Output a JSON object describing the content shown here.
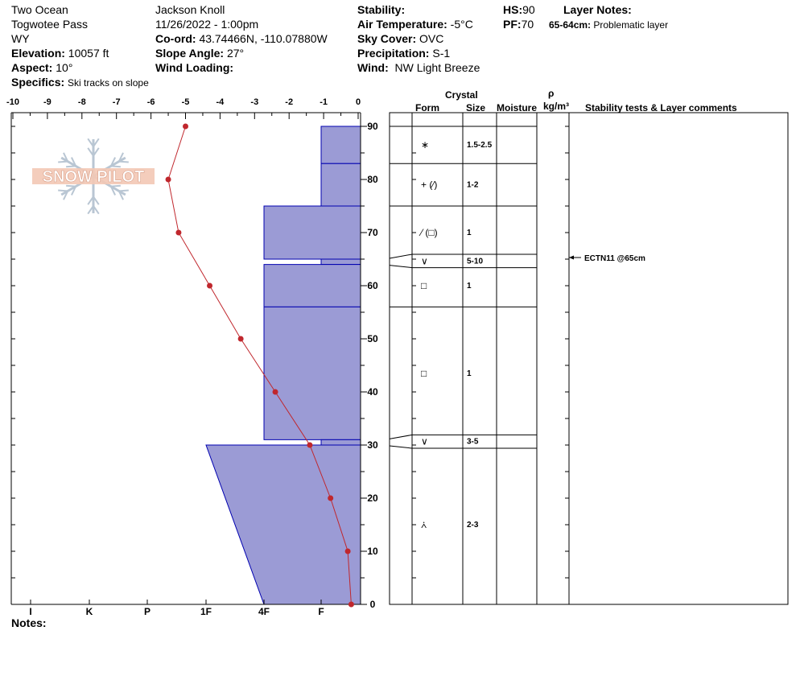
{
  "header": {
    "col1": [
      "Two Ocean",
      "Togwotee Pass",
      "WY"
    ],
    "elevation_label": "Elevation:",
    "elevation_value": "10057 ft",
    "aspect_label": "Aspect:",
    "aspect_value": "10°",
    "specifics_label": "Specifics:",
    "specifics_value": "Ski tracks on slope",
    "col2_1": "Jackson Knoll",
    "col2_2": "11/26/2022 - 1:00pm",
    "coord_label": "Co-ord:",
    "coord_value": "43.74466N, -110.07880W",
    "slope_label": "Slope Angle:",
    "slope_value": "27°",
    "wind_loading_label": "Wind Loading:",
    "stability_label": "Stability:",
    "airtemp_label": "Air Temperature:",
    "airtemp_value": "-5°C",
    "sky_label": "Sky Cover:",
    "sky_value": "OVC",
    "precip_label": "Precipitation:",
    "precip_value": "S-1",
    "wind_label": "Wind:",
    "wind_value": "NW Light Breeze",
    "hs_label": "HS:",
    "hs_value": "90",
    "pf_label": "PF:",
    "pf_value": "70",
    "layer_notes_label": "Layer Notes:",
    "layer_note_range": "65-64cm:",
    "layer_note_text": "Problematic layer"
  },
  "notes_label": "Notes:",
  "logo_text": "SNOW PILOT",
  "table_headers": {
    "crystal": "Crystal",
    "form": "Form",
    "size": "Size",
    "moisture": "Moisture",
    "rho": "ρ",
    "density_unit": "kg/m³",
    "stability": "Stability tests & Layer comments"
  },
  "chart_data": {
    "type": "line",
    "title": "",
    "temperature_axis": {
      "ticks": [
        "-10",
        "-9",
        "-8",
        "-7",
        "-6",
        "-5",
        "-4",
        "-3",
        "-2",
        "-1",
        "0"
      ],
      "range": [
        -10,
        0
      ]
    },
    "height_axis": {
      "ticks": [
        "0",
        "10",
        "20",
        "30",
        "40",
        "50",
        "60",
        "70",
        "80",
        "90"
      ],
      "range": [
        0,
        90
      ]
    },
    "hardness_ticks": [
      "I",
      "K",
      "P",
      "1F",
      "4F",
      "F"
    ],
    "temperature_profile": {
      "heights": [
        90,
        80,
        70,
        60,
        50,
        40,
        30,
        20,
        10,
        0
      ],
      "temps": [
        -5.0,
        -5.5,
        -5.2,
        -4.3,
        -3.4,
        -2.4,
        -1.4,
        -0.8,
        -0.3,
        -0.2
      ]
    },
    "hardness_profile": [
      {
        "top": 90,
        "bottom": 83,
        "hardness_top": "F",
        "hardness_bottom": "F"
      },
      {
        "top": 83,
        "bottom": 75,
        "hardness_top": "F",
        "hardness_bottom": "F"
      },
      {
        "top": 75,
        "bottom": 65,
        "hardness_top": "4F",
        "hardness_bottom": "4F"
      },
      {
        "top": 65,
        "bottom": 64,
        "hardness_top": "F",
        "hardness_bottom": "F"
      },
      {
        "top": 64,
        "bottom": 56,
        "hardness_top": "4F",
        "hardness_bottom": "4F"
      },
      {
        "top": 56,
        "bottom": 31,
        "hardness_top": "4F",
        "hardness_bottom": "4F"
      },
      {
        "top": 31,
        "bottom": 30,
        "hardness_top": "F",
        "hardness_bottom": "F"
      },
      {
        "top": 30,
        "bottom": 0,
        "hardness_top": "1F",
        "hardness_bottom": "4F"
      }
    ],
    "layers": [
      {
        "top": 90,
        "bottom": 83,
        "form": "∗",
        "size": "1.5-2.5"
      },
      {
        "top": 83,
        "bottom": 75,
        "form": "+ (⁄)",
        "size": "1-2"
      },
      {
        "top": 75,
        "bottom": 65,
        "form": "⁄ (□)",
        "size": "1"
      },
      {
        "top": 65,
        "bottom": 64,
        "form": "∨",
        "size": "5-10"
      },
      {
        "top": 64,
        "bottom": 56,
        "form": "□",
        "size": "1"
      },
      {
        "top": 56,
        "bottom": 31,
        "form": "□",
        "size": "1"
      },
      {
        "top": 31,
        "bottom": 30,
        "form": "∨",
        "size": "3-5"
      },
      {
        "top": 30,
        "bottom": 0,
        "form": "⩑",
        "size": "2-3"
      }
    ],
    "tests": [
      {
        "height": 65,
        "text": "ECTN11 @65cm"
      }
    ],
    "colors": {
      "hardness_fill": "#9b9bd5",
      "hardness_stroke": "#0000b0",
      "temp_line": "#c0272d"
    }
  }
}
